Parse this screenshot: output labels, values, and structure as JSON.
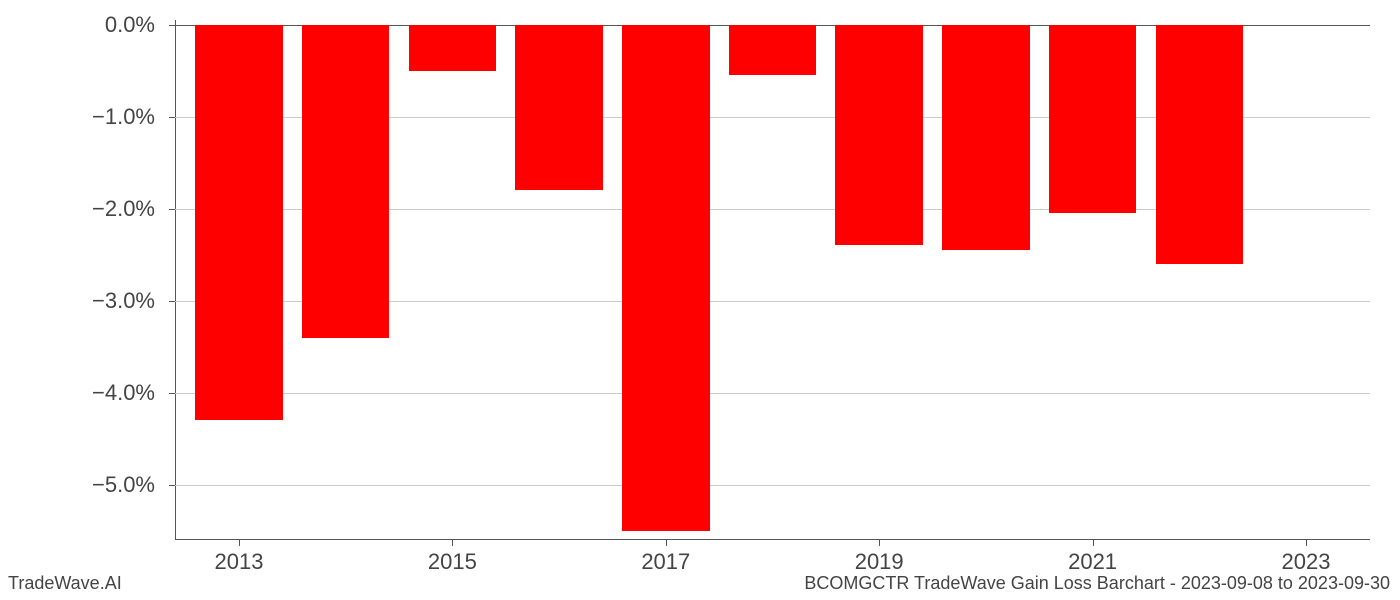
{
  "chart": {
    "type": "bar",
    "years": [
      2013,
      2014,
      2015,
      2016,
      2017,
      2018,
      2019,
      2020,
      2021,
      2022
    ],
    "values": [
      -4.3,
      -3.4,
      -0.5,
      -1.8,
      -5.5,
      -0.55,
      -2.4,
      -2.45,
      -2.05,
      -2.6
    ],
    "bar_color": "#ff0000",
    "bar_width": 0.82,
    "background_color": "#ffffff",
    "grid_color": "#cccccc",
    "axis_color": "#555555",
    "ylim": [
      -5.6,
      0.05
    ],
    "y_ticks": [
      0.0,
      -1.0,
      -2.0,
      -3.0,
      -4.0,
      -5.0
    ],
    "y_tick_labels": [
      "0.0%",
      "−1.0%",
      "−2.0%",
      "−3.0%",
      "−4.0%",
      "−5.0%"
    ],
    "x_tick_years": [
      2013,
      2015,
      2017,
      2019,
      2021,
      2023
    ],
    "x_tick_labels": [
      "2013",
      "2015",
      "2017",
      "2019",
      "2021",
      "2023"
    ],
    "tick_label_fontsize": 22,
    "tick_label_color": "#444444"
  },
  "footer": {
    "left": "TradeWave.AI",
    "right": "BCOMGCTR TradeWave Gain Loss Barchart - 2023-09-08 to 2023-09-30",
    "fontsize": 18,
    "color": "#444444"
  }
}
